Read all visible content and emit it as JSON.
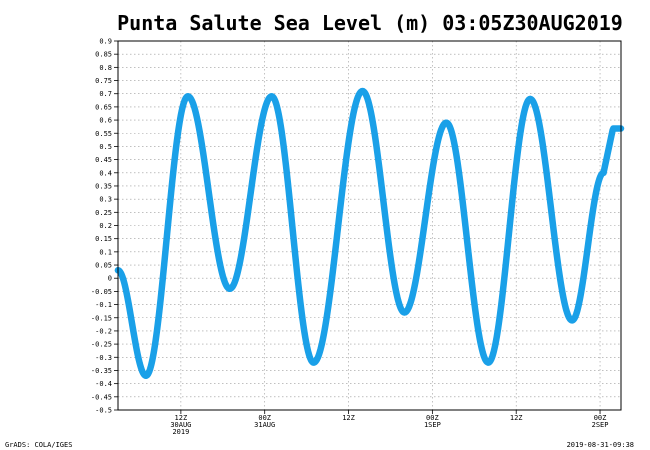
{
  "footer": {
    "left": "GrADS: COLA/IGES",
    "right": "2019-08-31-09:38"
  },
  "chart_data": {
    "type": "line",
    "title": "Punta Salute Sea Level (m) 03:05Z30AUG2019",
    "xlabel": "",
    "ylabel": "",
    "ylim": [
      -0.5,
      0.9
    ],
    "y_ticks": [
      "0.9",
      "0.85",
      "0.8",
      "0.75",
      "0.7",
      "0.65",
      "0.6",
      "0.55",
      "0.5",
      "0.45",
      "0.4",
      "0.35",
      "0.3",
      "0.25",
      "0.2",
      "0.15",
      "0.1",
      "0.05",
      "0",
      "-0.05",
      "-0.1",
      "-0.15",
      "-0.2",
      "-0.25",
      "-0.3",
      "-0.35",
      "-0.4",
      "-0.45",
      "-0.5"
    ],
    "x_range_hours": [
      3,
      75
    ],
    "x_ticks": [
      {
        "hour": 12,
        "lines": [
          "12Z",
          "30AUG",
          "2019"
        ]
      },
      {
        "hour": 24,
        "lines": [
          "00Z",
          "31AUG"
        ]
      },
      {
        "hour": 36,
        "lines": [
          "12Z"
        ]
      },
      {
        "hour": 48,
        "lines": [
          "00Z",
          "1SEP"
        ]
      },
      {
        "hour": 60,
        "lines": [
          "12Z"
        ]
      },
      {
        "hour": 72,
        "lines": [
          "00Z",
          "2SEP"
        ]
      }
    ],
    "grid": true,
    "series_color": "#1aa0e8",
    "series": [
      {
        "points": [
          [
            3,
            0.03
          ],
          [
            7,
            -0.37
          ],
          [
            13,
            0.69
          ],
          [
            19,
            -0.04
          ],
          [
            25,
            0.69
          ],
          [
            31,
            -0.32
          ],
          [
            38,
            0.71
          ],
          [
            44,
            -0.13
          ],
          [
            50,
            0.59
          ],
          [
            56,
            -0.32
          ],
          [
            62,
            0.68
          ],
          [
            68,
            -0.16
          ],
          [
            72.5,
            0.4
          ]
        ]
      }
    ]
  }
}
